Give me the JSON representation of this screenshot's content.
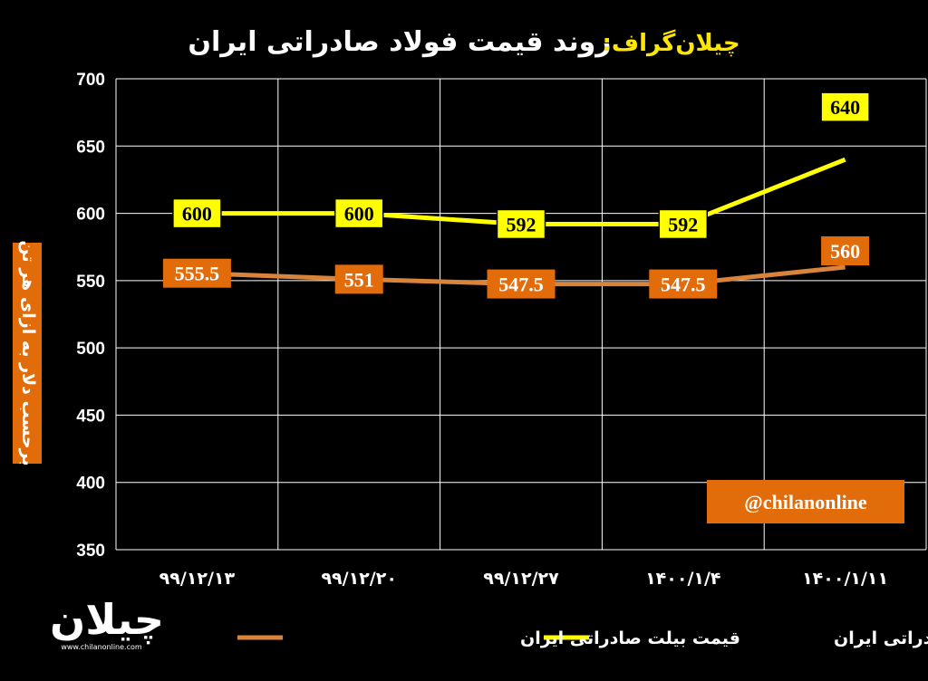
{
  "chart_data": {
    "type": "line",
    "title_brand": "چیلان‌گراف:",
    "title": "روند قیمت فولاد صادراتی ایران",
    "ylabel": "برحسب دلار به ازای هر تن",
    "ylim": [
      350,
      700
    ],
    "yticks": [
      "350",
      "400",
      "450",
      "500",
      "550",
      "600",
      "650",
      "700"
    ],
    "categories": [
      "۹۹/۱۲/۱۳",
      "۹۹/۱۲/۲۰",
      "۹۹/۱۲/۲۷",
      "۱۴۰۰/۱/۴",
      "۱۴۰۰/۱/۱۱"
    ],
    "grid": true,
    "legend_position": "bottom",
    "series": [
      {
        "name": "قیمت اسلب صادراتی ایران",
        "values": [
          600,
          600,
          592,
          592,
          640
        ],
        "labels": [
          "600",
          "600",
          "592",
          "592",
          "640"
        ],
        "color": "#ffff00",
        "label_bg": "#ffff00",
        "label_fg": "#000000"
      },
      {
        "name": "قیمت بیلت صادراتی ایران",
        "values": [
          555.5,
          551,
          547.5,
          547.5,
          560
        ],
        "labels": [
          "555.5",
          "551",
          "547.5",
          "547.5",
          "560"
        ],
        "color": "#d9843b",
        "label_bg": "#e36c0a",
        "label_fg": "#ffffff"
      }
    ]
  },
  "watermark": {
    "handle": "@chilanonline",
    "handle_bg": "#e36c0a"
  },
  "logo": {
    "text": "چیلان",
    "url": "www.chilanonline.com"
  },
  "colors": {
    "background": "#000000",
    "grid": "#ffffff",
    "ylabel_bg": "#e36c0a"
  }
}
